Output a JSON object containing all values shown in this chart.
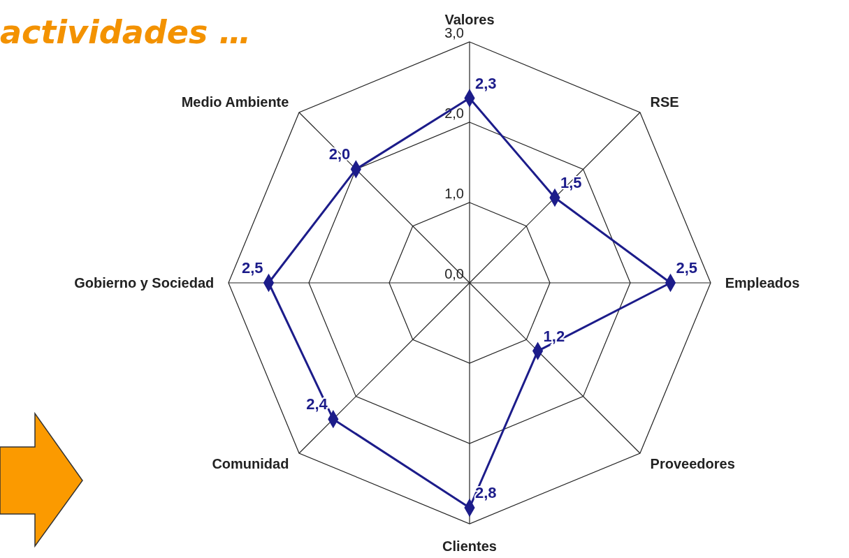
{
  "chart_data": {
    "type": "radar",
    "title": "actividades …",
    "categories": [
      "Valores",
      "RSE",
      "Empleados",
      "Proveedores",
      "Clientes",
      "Comunidad",
      "Gobierno y Sociedad",
      "Medio Ambiente"
    ],
    "series": [
      {
        "color": "#1c1c8a",
        "values": [
          2.3,
          1.5,
          2.5,
          1.2,
          2.8,
          2.4,
          2.5,
          2.0
        ],
        "value_labels": [
          "2,3",
          "1,5",
          "2,5",
          "1,2",
          "2,8",
          "2,4",
          "2,5",
          "2,0"
        ]
      }
    ],
    "ylim": [
      0,
      3
    ],
    "yticks": [
      {
        "value": 0,
        "label": "0,0"
      },
      {
        "value": 1,
        "label": "1,0"
      },
      {
        "value": 2,
        "label": "2,0"
      },
      {
        "value": 3,
        "label": "3,0"
      }
    ],
    "marker": "diamond",
    "grid": true
  }
}
